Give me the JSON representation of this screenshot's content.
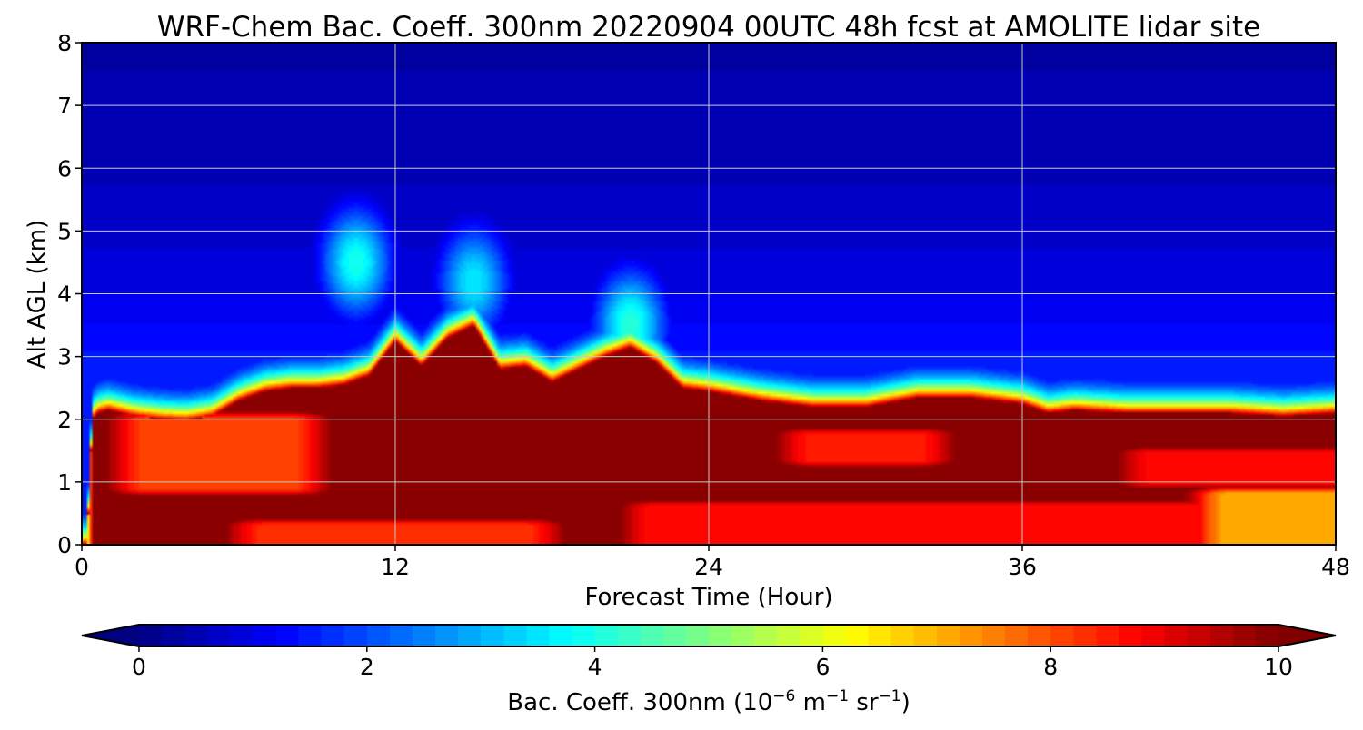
{
  "chart_data": {
    "type": "heatmap",
    "title": "WRF-Chem Bac. Coeff. 300nm  20220904 00UTC 48h fcst at AMOLITE lidar site",
    "xlabel": "Forecast Time (Hour)",
    "ylabel": "Alt AGL (km)",
    "xlim": [
      0,
      48
    ],
    "ylim": [
      0,
      8
    ],
    "x_ticks": [
      0,
      12,
      24,
      36,
      48
    ],
    "y_ticks": [
      0,
      1,
      2,
      3,
      4,
      5,
      6,
      7,
      8
    ],
    "grid": true,
    "colormap": "jet",
    "colorbar": {
      "label_main": "Bac. Coeff. 300nm  (10",
      "exp1": "−6",
      "label_mid1": " m",
      "exp2": "−1",
      "label_mid2": " sr",
      "exp3": "−1",
      "label_end": ")",
      "range": [
        0,
        10
      ],
      "ticks": [
        0,
        2,
        4,
        6,
        8,
        10
      ],
      "extend": "both",
      "levels": 50
    },
    "boundary_layer_top_km": {
      "hours": [
        0.2,
        0.4,
        0.6,
        1,
        2,
        3,
        4,
        5,
        6,
        7,
        8,
        9,
        10,
        11,
        12,
        13,
        14,
        15,
        16,
        17,
        18,
        19,
        20,
        21,
        22,
        23,
        24,
        26,
        28,
        30,
        32,
        34,
        36,
        37,
        38,
        40,
        42,
        44,
        46,
        48
      ],
      "top_km": [
        0.0,
        2.0,
        2.1,
        2.15,
        2.05,
        2.0,
        1.98,
        2.05,
        2.3,
        2.45,
        2.5,
        2.5,
        2.55,
        2.7,
        3.25,
        2.85,
        3.3,
        3.5,
        2.8,
        2.85,
        2.6,
        2.8,
        3.0,
        3.15,
        2.9,
        2.5,
        2.45,
        2.3,
        2.2,
        2.2,
        2.35,
        2.35,
        2.25,
        2.1,
        2.15,
        2.1,
        2.1,
        2.1,
        2.05,
        2.1
      ]
    },
    "lower_values_in_layer": [
      {
        "x0": 2.5,
        "x1": 8,
        "y0": 0.9,
        "y1": 2.0,
        "value": 8.1
      },
      {
        "x0": 7,
        "x1": 17,
        "y0": 0.0,
        "y1": 0.3,
        "value": 8.3
      },
      {
        "x0": 28,
        "x1": 32,
        "y0": 1.35,
        "y1": 1.75,
        "value": 8.5
      },
      {
        "x0": 22,
        "x1": 48,
        "y0": 0.0,
        "y1": 0.6,
        "value": 8.6
      },
      {
        "x0": 41,
        "x1": 48,
        "y0": 1.0,
        "y1": 1.45,
        "value": 8.7
      },
      {
        "x0": 44,
        "x1": 48,
        "y0": 0.0,
        "y1": 0.8,
        "value": 7.0
      }
    ],
    "aloft_plume": [
      {
        "hour": 10.5,
        "alt_km": 4.5,
        "value": 4.0
      },
      {
        "hour": 15.0,
        "alt_km": 4.2,
        "value": 3.6
      },
      {
        "hour": 21.0,
        "alt_km": 3.5,
        "value": 4.2
      }
    ]
  }
}
